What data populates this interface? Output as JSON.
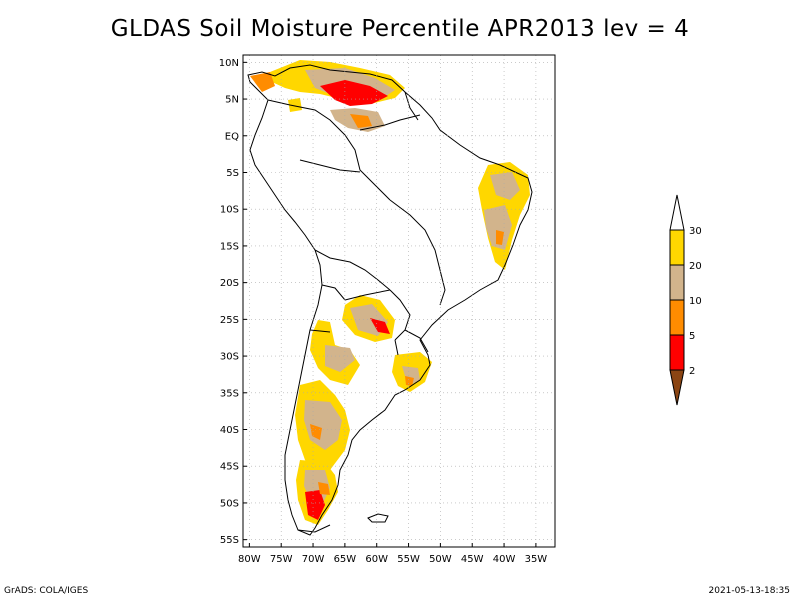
{
  "title": "GLDAS Soil Moisture Percentile APR2013 lev = 4",
  "footer": {
    "left": "GrADS: COLA/IGES",
    "right": "2021-05-13-18:35"
  },
  "axes": {
    "lat_labels": [
      "10N",
      "5N",
      "EQ",
      "5S",
      "10S",
      "15S",
      "20S",
      "25S",
      "30S",
      "35S",
      "40S",
      "45S",
      "50S",
      "55S"
    ],
    "lat_values": [
      10,
      5,
      0,
      -5,
      -10,
      -15,
      -20,
      -25,
      -30,
      -35,
      -40,
      -45,
      -50,
      -55
    ],
    "lon_labels": [
      "80W",
      "75W",
      "70W",
      "65W",
      "60W",
      "55W",
      "50W",
      "45W",
      "40W",
      "35W"
    ],
    "lon_values": [
      -80,
      -75,
      -70,
      -65,
      -60,
      -55,
      -50,
      -45,
      -40,
      -35
    ]
  },
  "legend": {
    "labels": [
      "30",
      "20",
      "10",
      "5",
      "2"
    ],
    "colors": {
      "lt2": "#8b4513",
      "2to5": "#ff0000",
      "5to10": "#ff8c00",
      "10to20": "#d2b48c",
      "20to30": "#ffd700",
      "gt30": "#ffffff"
    }
  },
  "grid": true,
  "map_extent": {
    "lon": [
      -81,
      -32
    ],
    "lat": [
      -56,
      11
    ]
  }
}
